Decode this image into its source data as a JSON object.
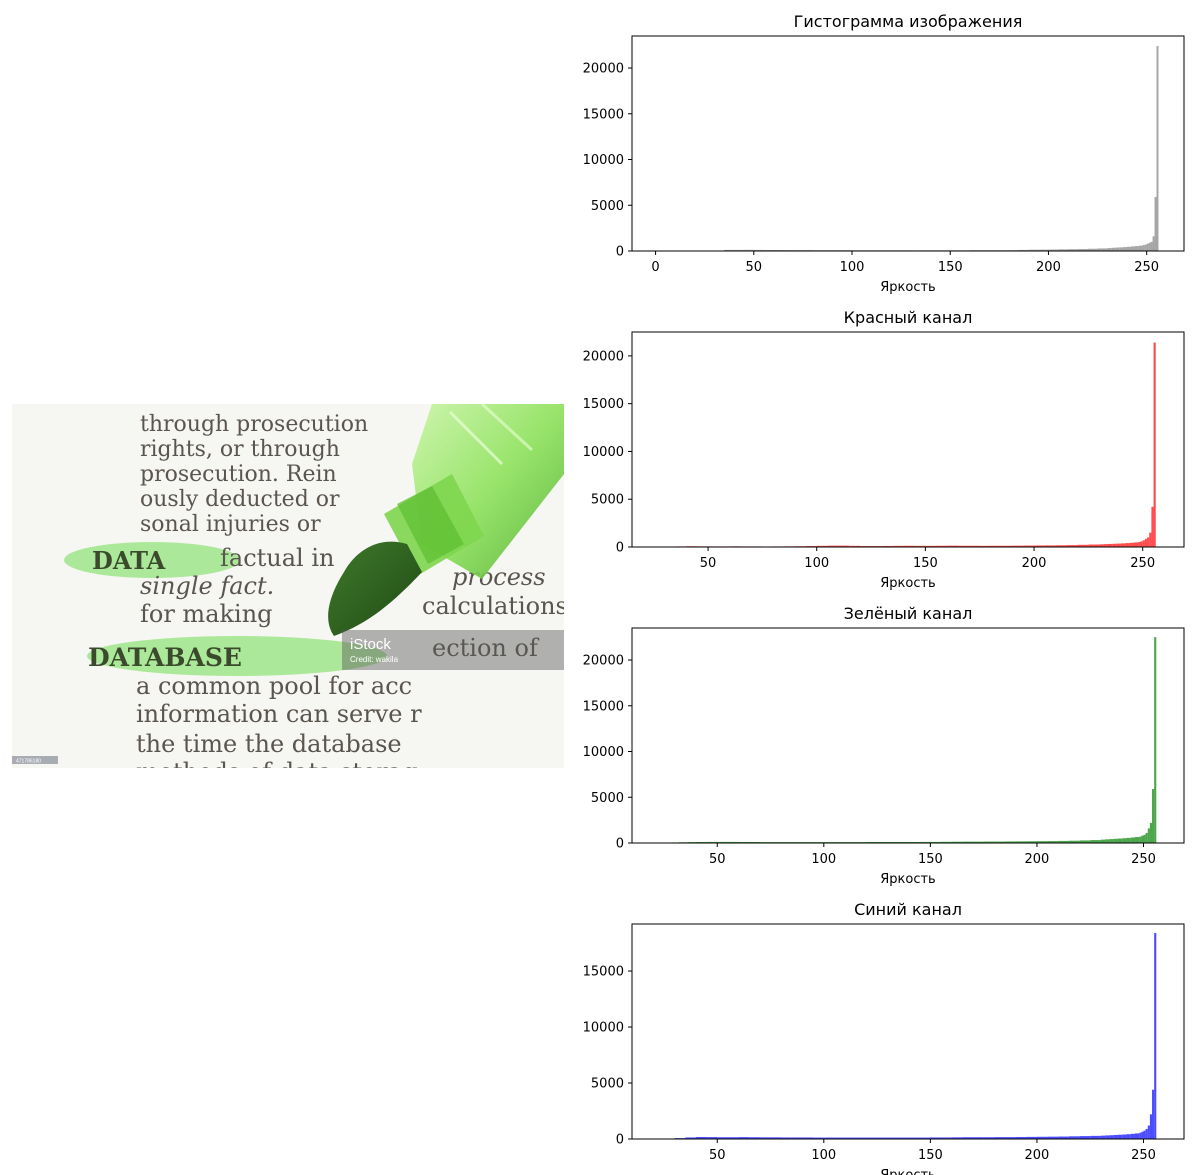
{
  "photo": {
    "kind": "photo",
    "watermark": {
      "brand": "iStock",
      "credit": "Credit: wakila"
    },
    "stock_id": "471786180",
    "text_lines": [
      "through prosecution",
      "rights, or through",
      "prosecution. Rein",
      "ously deducted or",
      "sonal injuries or",
      "factual in",
      "single fact.",
      "process",
      "for making",
      "calculations",
      "ection of",
      "a common pool for acc",
      "information can serve r",
      "the time the database",
      "methods of data storag"
    ],
    "highlighted_words": [
      "DATA",
      "DATABASE"
    ],
    "highlight_color": "#8fe07a"
  },
  "chart_data": [
    {
      "type": "bar",
      "title": "Гистограмма изображения",
      "xlabel": "Яркость",
      "ylabel": "",
      "color": "#808080",
      "xlim": [
        -12,
        269
      ],
      "ylim": [
        0,
        23500
      ],
      "xticks": [
        0,
        50,
        100,
        150,
        200,
        250
      ],
      "yticks": [
        0,
        5000,
        10000,
        15000,
        20000
      ],
      "x": [
        35,
        40,
        45,
        50,
        55,
        60,
        65,
        70,
        75,
        80,
        85,
        90,
        95,
        100,
        105,
        110,
        115,
        120,
        125,
        130,
        135,
        140,
        145,
        150,
        155,
        160,
        165,
        170,
        175,
        180,
        185,
        190,
        195,
        200,
        205,
        210,
        215,
        220,
        225,
        230,
        232,
        234,
        236,
        238,
        240,
        242,
        244,
        246,
        248,
        249,
        250,
        251,
        252,
        253,
        254,
        255
      ],
      "values": [
        120,
        120,
        130,
        120,
        110,
        110,
        100,
        100,
        100,
        90,
        90,
        90,
        90,
        80,
        80,
        80,
        80,
        80,
        80,
        70,
        80,
        80,
        80,
        80,
        80,
        90,
        90,
        90,
        90,
        100,
        120,
        140,
        150,
        160,
        180,
        200,
        220,
        250,
        280,
        320,
        350,
        380,
        400,
        430,
        460,
        500,
        540,
        580,
        650,
        700,
        800,
        900,
        1000,
        1600,
        5900,
        22400
      ]
    },
    {
      "type": "bar",
      "title": "Красный канал",
      "xlabel": "Яркость",
      "ylabel": "",
      "color": "#ff0000",
      "xlim": [
        15,
        269
      ],
      "ylim": [
        0,
        22500
      ],
      "xticks": [
        50,
        100,
        150,
        200,
        250
      ],
      "yticks": [
        0,
        5000,
        10000,
        15000,
        20000
      ],
      "x": [
        30,
        35,
        40,
        45,
        50,
        55,
        60,
        65,
        70,
        75,
        80,
        85,
        90,
        95,
        100,
        105,
        110,
        115,
        120,
        125,
        130,
        135,
        140,
        145,
        150,
        155,
        160,
        165,
        170,
        175,
        180,
        185,
        190,
        195,
        200,
        205,
        210,
        215,
        220,
        225,
        230,
        232,
        234,
        236,
        238,
        240,
        242,
        244,
        246,
        248,
        249,
        250,
        251,
        252,
        253,
        254,
        255
      ],
      "values": [
        40,
        60,
        80,
        70,
        60,
        60,
        70,
        60,
        60,
        50,
        60,
        70,
        80,
        100,
        120,
        140,
        140,
        120,
        100,
        100,
        110,
        120,
        130,
        120,
        120,
        130,
        140,
        130,
        130,
        120,
        130,
        130,
        140,
        150,
        160,
        170,
        180,
        200,
        230,
        260,
        280,
        300,
        320,
        340,
        360,
        380,
        410,
        440,
        480,
        520,
        600,
        700,
        850,
        1000,
        1500,
        4200,
        21400
      ]
    },
    {
      "type": "bar",
      "title": "Зелёный канал",
      "xlabel": "Яркость",
      "ylabel": "",
      "color": "#008000",
      "xlim": [
        10,
        269
      ],
      "ylim": [
        0,
        23500
      ],
      "xticks": [
        50,
        100,
        150,
        200,
        250
      ],
      "yticks": [
        0,
        5000,
        10000,
        15000,
        20000
      ],
      "x": [
        28,
        32,
        36,
        40,
        45,
        50,
        55,
        60,
        65,
        70,
        75,
        80,
        85,
        90,
        95,
        100,
        105,
        110,
        115,
        120,
        125,
        130,
        135,
        140,
        145,
        150,
        155,
        160,
        165,
        170,
        175,
        180,
        185,
        190,
        195,
        200,
        205,
        210,
        215,
        220,
        225,
        230,
        232,
        234,
        236,
        238,
        240,
        242,
        244,
        246,
        248,
        249,
        250,
        251,
        252,
        253,
        254,
        255
      ],
      "values": [
        60,
        80,
        100,
        110,
        120,
        120,
        120,
        110,
        110,
        100,
        100,
        100,
        100,
        100,
        100,
        100,
        100,
        100,
        100,
        110,
        110,
        110,
        110,
        110,
        120,
        120,
        130,
        140,
        150,
        150,
        160,
        160,
        170,
        180,
        190,
        200,
        210,
        230,
        250,
        280,
        320,
        370,
        400,
        430,
        460,
        490,
        520,
        560,
        600,
        650,
        700,
        800,
        900,
        1100,
        1600,
        2200,
        5900,
        22500
      ]
    },
    {
      "type": "bar",
      "title": "Синий канал",
      "xlabel": "Яркость",
      "ylabel": "",
      "color": "#0000ff",
      "xlim": [
        10,
        269
      ],
      "ylim": [
        0,
        19200
      ],
      "xticks": [
        50,
        100,
        150,
        200,
        250
      ],
      "yticks": [
        0,
        5000,
        10000,
        15000
      ],
      "x": [
        30,
        35,
        40,
        45,
        50,
        55,
        60,
        65,
        70,
        75,
        80,
        85,
        90,
        95,
        100,
        105,
        110,
        115,
        120,
        125,
        130,
        135,
        140,
        145,
        150,
        155,
        160,
        165,
        170,
        175,
        180,
        185,
        190,
        195,
        200,
        205,
        210,
        215,
        220,
        225,
        230,
        232,
        234,
        236,
        238,
        240,
        242,
        244,
        246,
        248,
        249,
        250,
        251,
        252,
        253,
        254,
        255
      ],
      "values": [
        80,
        140,
        180,
        170,
        160,
        160,
        170,
        160,
        150,
        150,
        140,
        140,
        140,
        130,
        130,
        130,
        130,
        130,
        130,
        130,
        130,
        130,
        130,
        130,
        140,
        140,
        150,
        160,
        160,
        160,
        170,
        170,
        180,
        190,
        200,
        210,
        220,
        240,
        260,
        280,
        300,
        320,
        340,
        360,
        380,
        400,
        430,
        460,
        500,
        560,
        650,
        750,
        900,
        1200,
        2200,
        4400,
        18400
      ]
    }
  ]
}
